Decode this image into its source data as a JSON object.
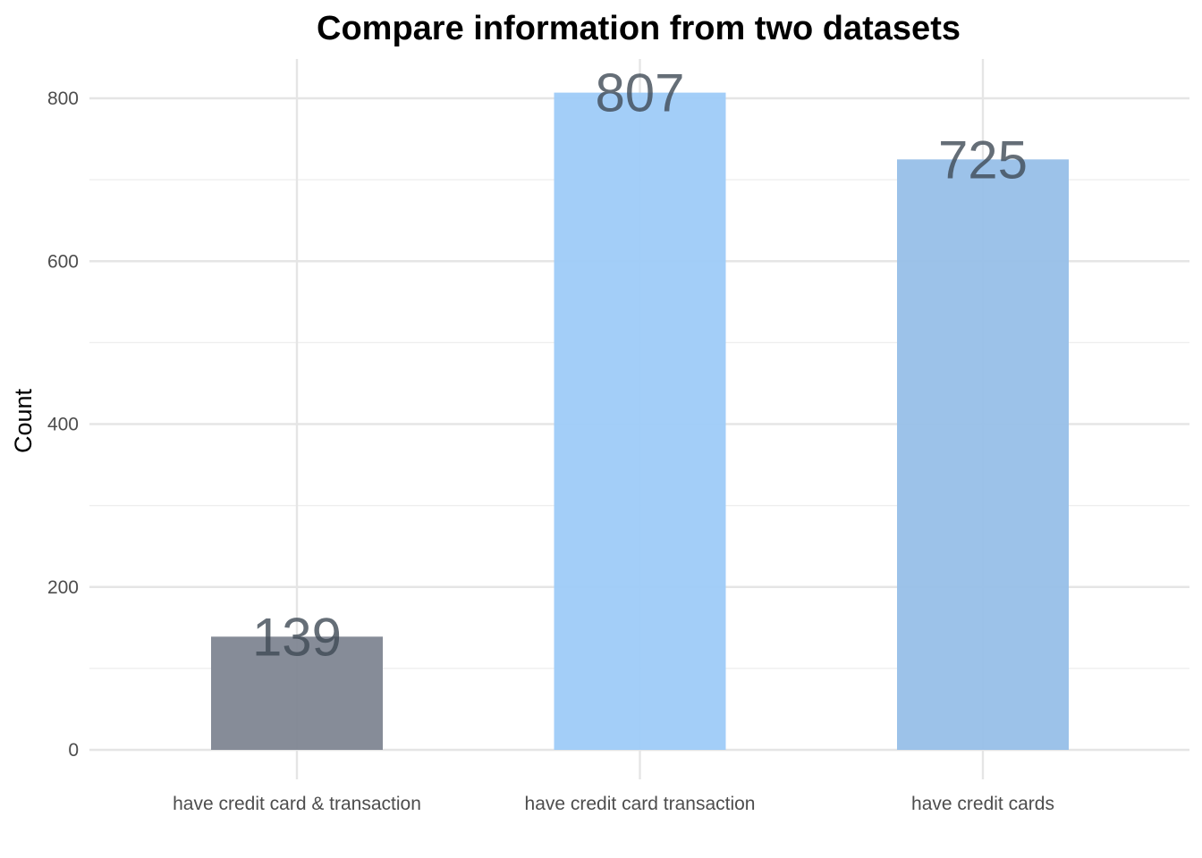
{
  "chart_data": {
    "type": "bar",
    "title": "Compare information from two datasets",
    "xlabel": "",
    "ylabel": "Count",
    "categories": [
      "have credit card & transaction",
      "have credit card transaction",
      "have credit cards"
    ],
    "values": [
      139,
      807,
      725
    ],
    "bar_colors": [
      "#7f8692",
      "#9ecbf8",
      "#97bfe8"
    ],
    "ylim": [
      0,
      850
    ],
    "yticks": [
      0,
      200,
      400,
      600,
      800
    ],
    "grid": true,
    "legend": "none"
  }
}
